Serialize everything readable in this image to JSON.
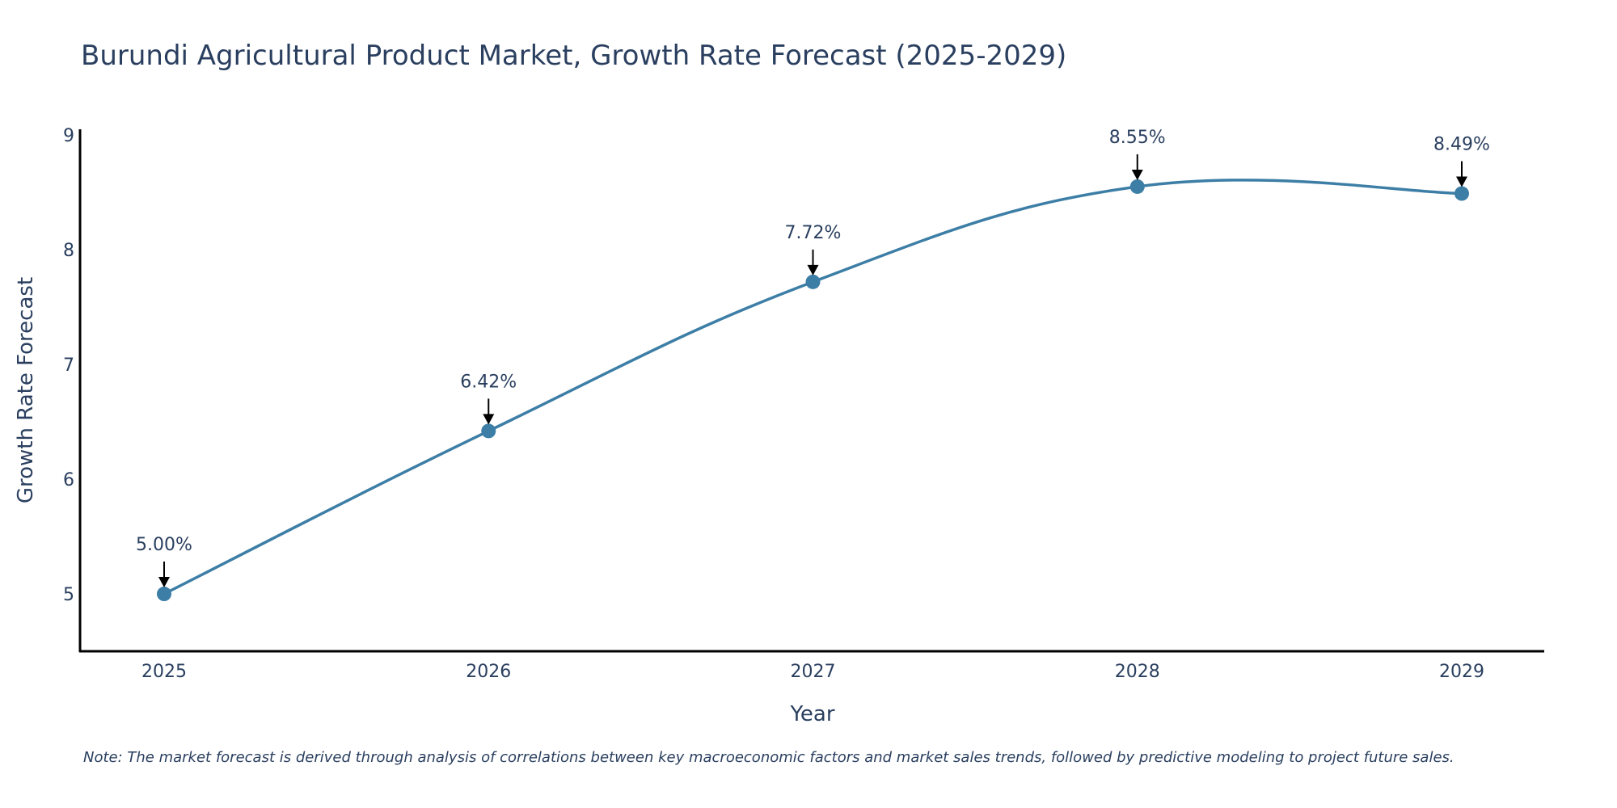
{
  "chart_data": {
    "type": "line",
    "title": "Burundi Agricultural Product Market, Growth Rate Forecast (2025-2029)",
    "xlabel": "Year",
    "ylabel": "Growth Rate Forecast",
    "categories": [
      "2025",
      "2026",
      "2027",
      "2028",
      "2029"
    ],
    "values": [
      5.0,
      6.42,
      7.72,
      8.55,
      8.49
    ],
    "data_labels": [
      "5.00%",
      "6.42%",
      "7.72%",
      "8.55%",
      "8.49%"
    ],
    "ylim": [
      4.5,
      9.05
    ],
    "yticks": [
      5,
      6,
      7,
      8,
      9
    ],
    "grid": false,
    "line_color": "#3d7ea6",
    "marker_color": "#3d7ea6",
    "note": "Note: The market forecast is derived through analysis of correlations between key macroeconomic factors and market sales trends, followed by predictive modeling to project future sales."
  }
}
